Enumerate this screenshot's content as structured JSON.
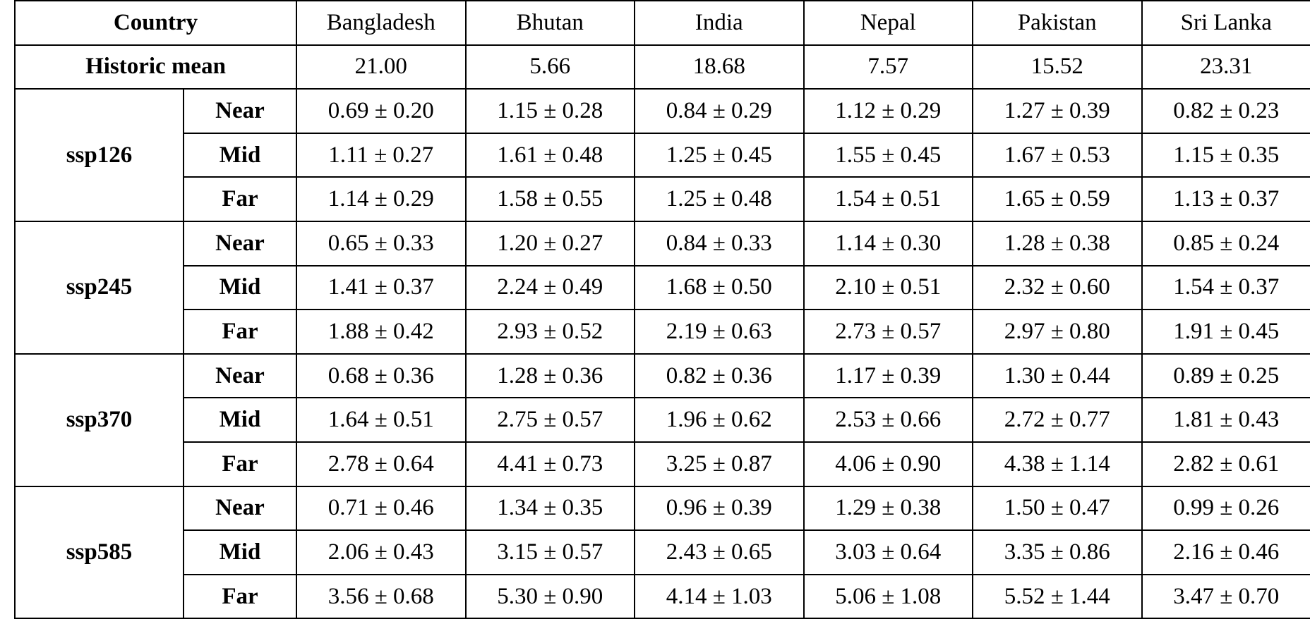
{
  "table": {
    "country_header": "Country",
    "countries": [
      "Bangladesh",
      "Bhutan",
      "India",
      "Nepal",
      "Pakistan",
      "Sri Lanka"
    ],
    "historic_label": "Historic mean",
    "historic_values": [
      "21.00",
      "5.66",
      "18.68",
      "7.57",
      "15.52",
      "23.31"
    ],
    "scenarios": [
      {
        "name": "ssp126",
        "rows": [
          {
            "horizon": "Near",
            "values": [
              "0.69 ± 0.20",
              "1.15 ± 0.28",
              "0.84 ± 0.29",
              "1.12 ± 0.29",
              "1.27 ± 0.39",
              "0.82 ± 0.23"
            ]
          },
          {
            "horizon": "Mid",
            "values": [
              "1.11 ± 0.27",
              "1.61 ± 0.48",
              "1.25 ± 0.45",
              "1.55 ± 0.45",
              "1.67 ± 0.53",
              "1.15 ± 0.35"
            ]
          },
          {
            "horizon": "Far",
            "values": [
              "1.14 ± 0.29",
              "1.58 ± 0.55",
              "1.25 ± 0.48",
              "1.54 ± 0.51",
              "1.65 ± 0.59",
              "1.13 ± 0.37"
            ]
          }
        ]
      },
      {
        "name": "ssp245",
        "rows": [
          {
            "horizon": "Near",
            "values": [
              "0.65 ± 0.33",
              "1.20 ± 0.27",
              "0.84 ± 0.33",
              "1.14 ± 0.30",
              "1.28 ± 0.38",
              "0.85 ± 0.24"
            ]
          },
          {
            "horizon": "Mid",
            "values": [
              "1.41 ± 0.37",
              "2.24 ± 0.49",
              "1.68 ± 0.50",
              "2.10 ± 0.51",
              "2.32 ± 0.60",
              "1.54 ± 0.37"
            ]
          },
          {
            "horizon": "Far",
            "values": [
              "1.88 ± 0.42",
              "2.93 ± 0.52",
              "2.19 ± 0.63",
              "2.73 ± 0.57",
              "2.97 ± 0.80",
              "1.91 ± 0.45"
            ]
          }
        ]
      },
      {
        "name": "ssp370",
        "rows": [
          {
            "horizon": "Near",
            "values": [
              "0.68 ± 0.36",
              "1.28 ± 0.36",
              "0.82 ± 0.36",
              "1.17 ± 0.39",
              "1.30 ± 0.44",
              "0.89 ± 0.25"
            ]
          },
          {
            "horizon": "Mid",
            "values": [
              "1.64 ± 0.51",
              "2.75 ± 0.57",
              "1.96 ± 0.62",
              "2.53 ± 0.66",
              "2.72 ± 0.77",
              "1.81 ± 0.43"
            ]
          },
          {
            "horizon": "Far",
            "values": [
              "2.78 ± 0.64",
              "4.41 ± 0.73",
              "3.25 ± 0.87",
              "4.06 ± 0.90",
              "4.38 ± 1.14",
              "2.82 ± 0.61"
            ]
          }
        ]
      },
      {
        "name": "ssp585",
        "rows": [
          {
            "horizon": "Near",
            "values": [
              "0.71 ± 0.46",
              "1.34 ± 0.35",
              "0.96 ± 0.39",
              "1.29 ± 0.38",
              "1.50 ± 0.47",
              "0.99 ± 0.26"
            ]
          },
          {
            "horizon": "Mid",
            "values": [
              "2.06 ± 0.43",
              "3.15 ± 0.57",
              "2.43 ± 0.65",
              "3.03 ± 0.64",
              "3.35 ± 0.86",
              "2.16 ± 0.46"
            ]
          },
          {
            "horizon": "Far",
            "values": [
              "3.56 ± 0.68",
              "5.30 ± 0.90",
              "4.14 ± 1.03",
              "5.06 ± 1.08",
              "5.52 ± 1.44",
              "3.47 ± 0.70"
            ]
          }
        ]
      }
    ]
  }
}
